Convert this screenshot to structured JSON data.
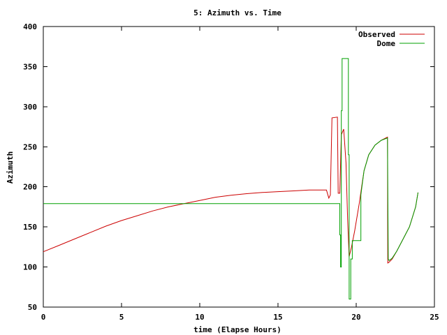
{
  "chart_data": {
    "type": "line",
    "title": "5: Azimuth vs. Time",
    "xlabel": "time (Elapse Hours)",
    "ylabel": "Azimuth",
    "xlim": [
      0,
      25
    ],
    "ylim": [
      50,
      400
    ],
    "xticks": [
      0,
      5,
      10,
      15,
      20,
      25
    ],
    "yticks": [
      50,
      100,
      150,
      200,
      250,
      300,
      350,
      400
    ],
    "grid": false,
    "legend": "top-right",
    "series": [
      {
        "name": "Observed",
        "color": "#cc0000",
        "x": [
          0,
          1,
          2,
          3,
          4,
          5,
          6,
          7,
          8,
          9,
          10,
          11,
          12,
          13,
          14,
          15,
          16,
          17,
          18.1,
          18.25,
          18.35,
          18.45,
          18.8,
          18.85,
          18.95,
          19.05,
          19.2,
          19.35,
          19.45,
          19.55,
          19.7,
          19.9,
          20.2,
          20.35,
          20.5,
          20.8,
          21.2,
          21.6,
          22.0,
          22.02,
          22.1,
          22.3,
          22.6,
          23.0,
          23.4,
          23.8,
          23.95
        ],
        "y": [
          119,
          127,
          135,
          143,
          151,
          158,
          164,
          170,
          175,
          179,
          183,
          187,
          189.5,
          191.5,
          193,
          194,
          195,
          196,
          196,
          186,
          190,
          286,
          287,
          192,
          192,
          265,
          272,
          230,
          160,
          113,
          125,
          145,
          180,
          200,
          220,
          240,
          252,
          258,
          262,
          105,
          106,
          110,
          120,
          135,
          150,
          175,
          193
        ]
      },
      {
        "name": "Dome",
        "color": "#00a000",
        "x": [
          0,
          18.95,
          18.95,
          19.0,
          19.0,
          19.05,
          19.05,
          19.1,
          19.1,
          19.5,
          19.5,
          19.55,
          19.55,
          19.65,
          19.65,
          19.75,
          19.75,
          20.3,
          20.3,
          20.5,
          20.8,
          21.2,
          21.6,
          22.0,
          22.05,
          22.1,
          22.3,
          22.6,
          23.0,
          23.4,
          23.8,
          23.95
        ],
        "y": [
          179,
          179,
          140,
          140,
          100,
          100,
          295,
          295,
          360,
          360,
          240,
          240,
          60,
          60,
          110,
          110,
          133,
          133,
          190,
          220,
          240,
          252,
          258,
          261,
          110,
          108,
          111,
          120,
          135,
          150,
          175,
          193
        ]
      }
    ]
  }
}
